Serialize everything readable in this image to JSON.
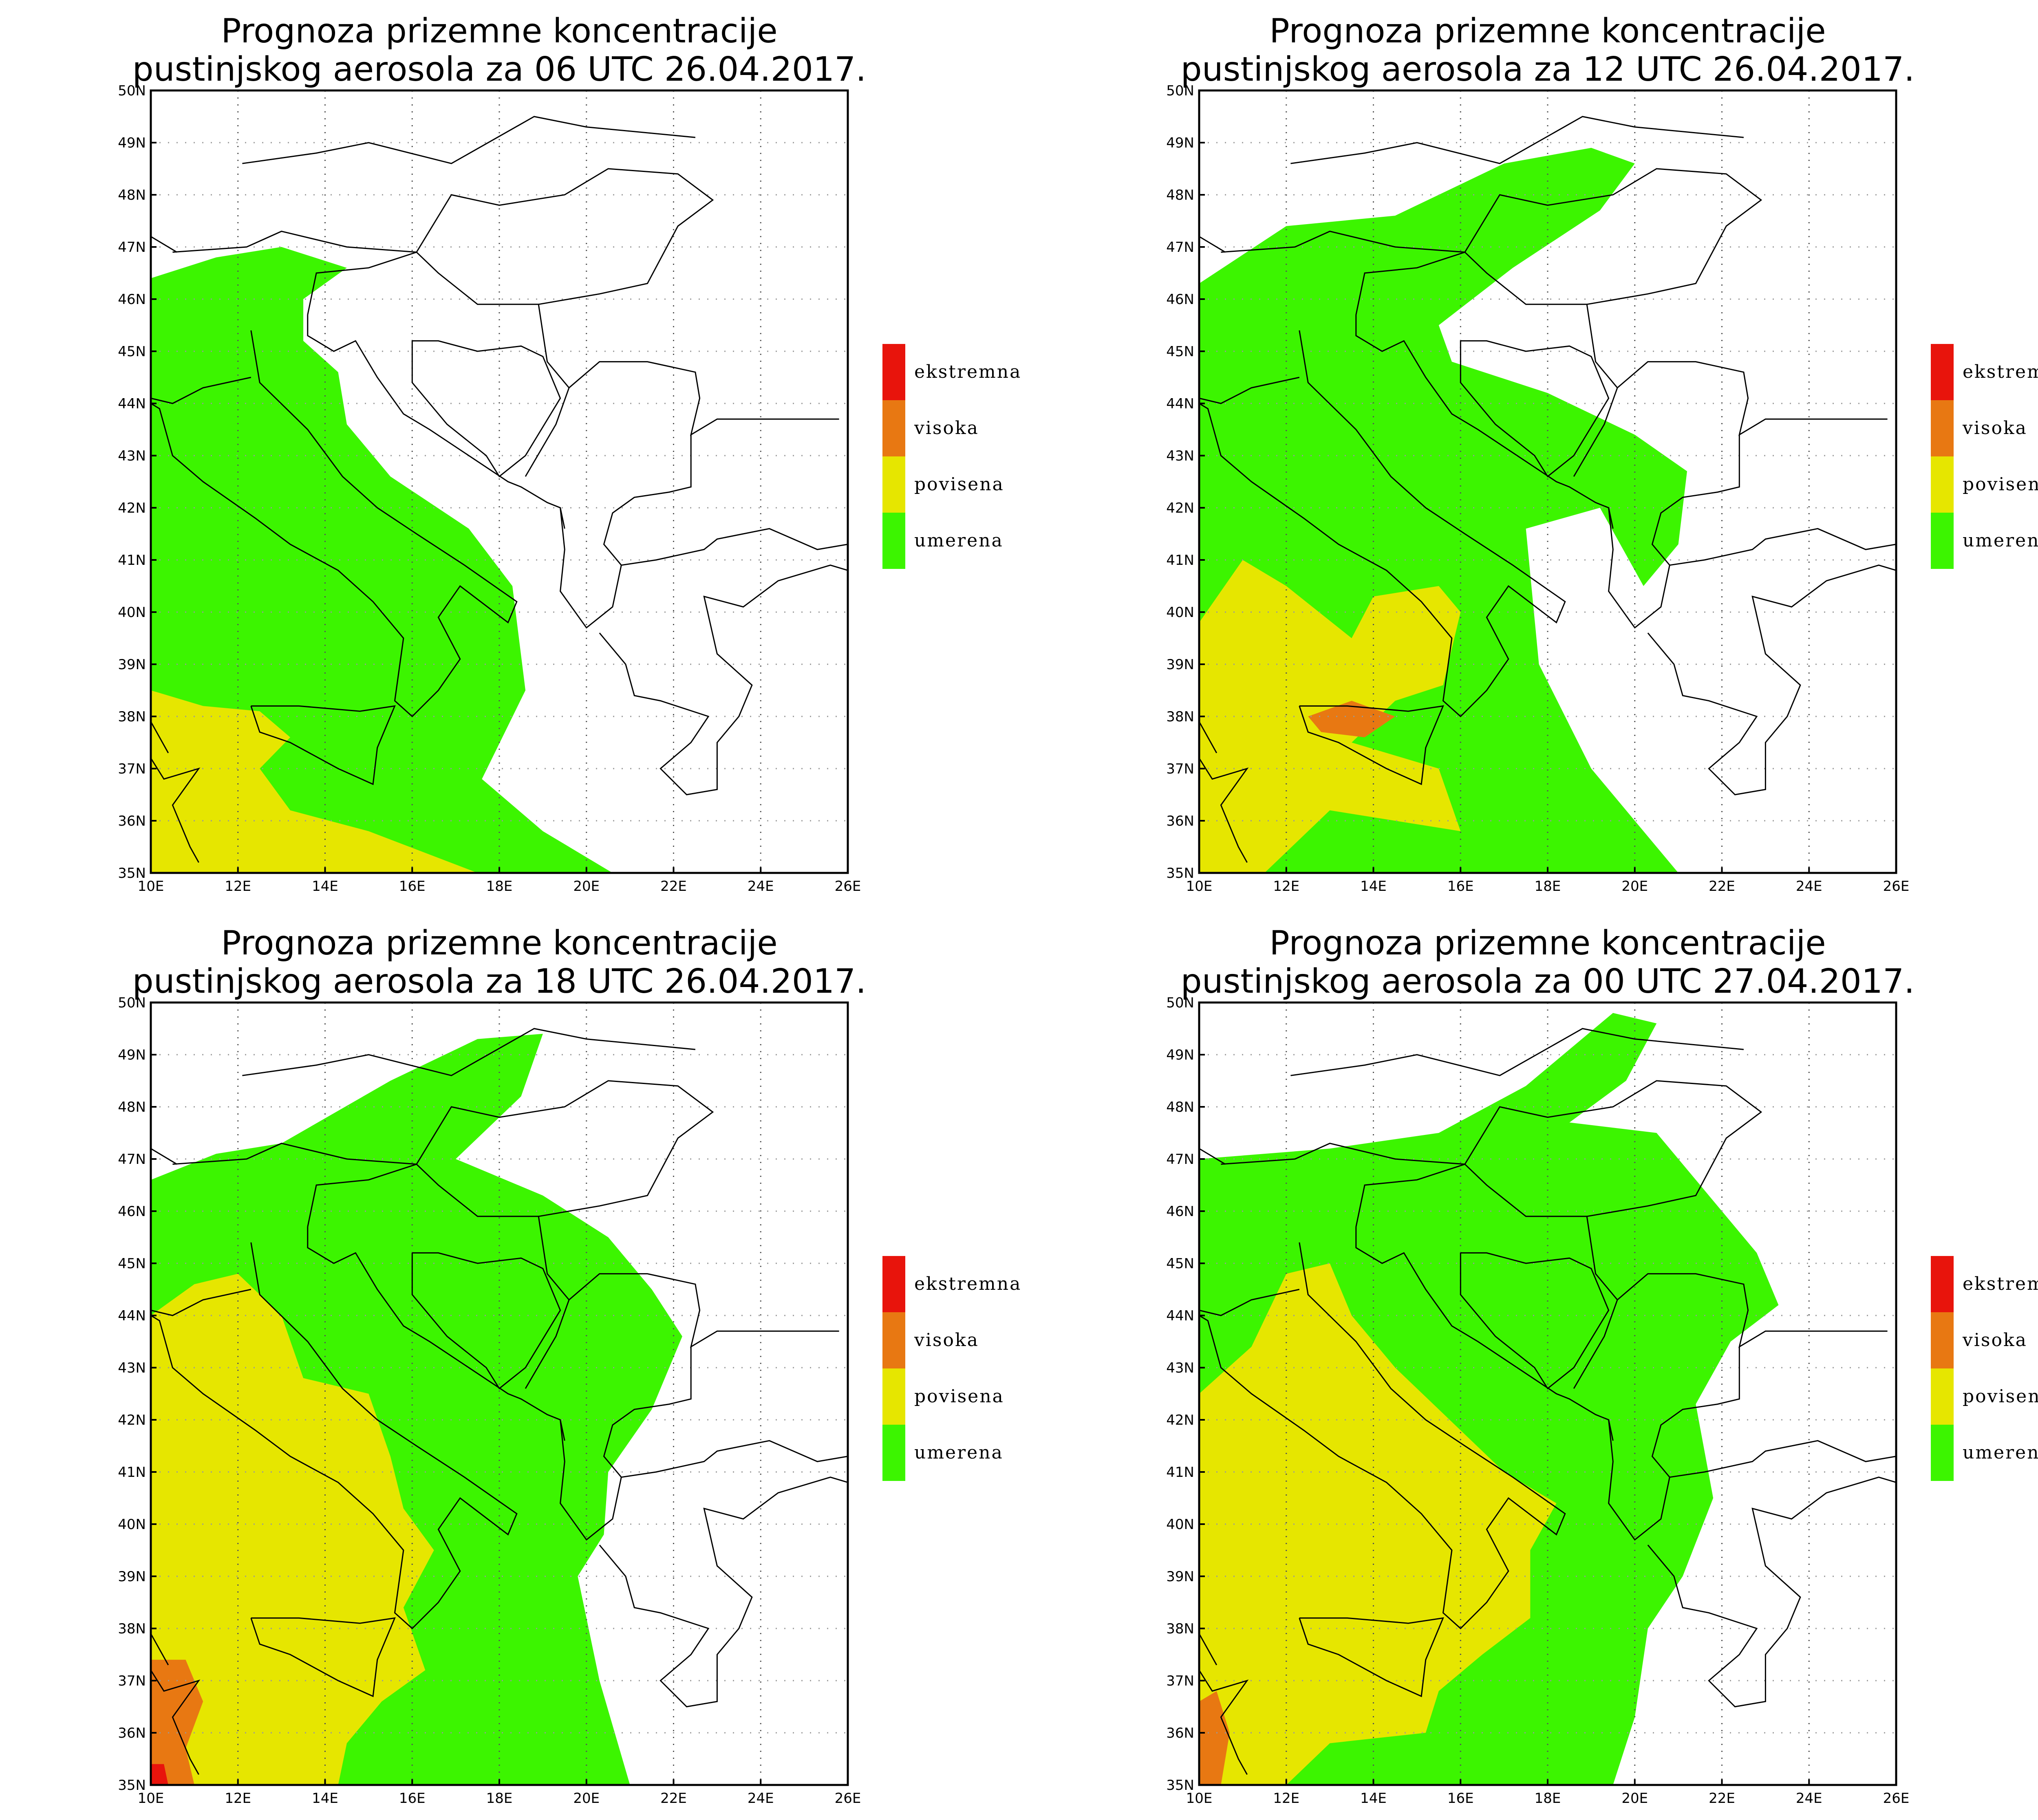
{
  "map": {
    "extent": {
      "lon": [
        10,
        26
      ],
      "lat": [
        35,
        50
      ]
    },
    "lon_ticks": [
      "10E",
      "12E",
      "14E",
      "16E",
      "18E",
      "20E",
      "22E",
      "24E",
      "26E"
    ],
    "lat_ticks": [
      "35N",
      "36N",
      "37N",
      "38N",
      "39N",
      "40N",
      "41N",
      "42N",
      "43N",
      "44N",
      "45N",
      "46N",
      "47N",
      "48N",
      "49N",
      "50N"
    ],
    "gridlines": true
  },
  "legend": [
    {
      "label": "ekstremna",
      "color": "#e8140c"
    },
    {
      "label": "visoka",
      "color": "#e87812"
    },
    {
      "label": "povisena",
      "color": "#e6e600"
    },
    {
      "label": "umerena",
      "color": "#3cf500"
    }
  ],
  "panels": [
    {
      "title_line1": "Prognoza prizemne koncentracije",
      "title_line2": "pustinjskog aerosola za 06 UTC 26.04.2017.",
      "green": [
        [
          10,
          46.4
        ],
        [
          11.5,
          46.8
        ],
        [
          13,
          47
        ],
        [
          14.5,
          46.6
        ],
        [
          13.5,
          46
        ],
        [
          13.5,
          45.2
        ],
        [
          14.3,
          44.6
        ],
        [
          14.5,
          43.6
        ],
        [
          15.5,
          42.6
        ],
        [
          17.3,
          41.6
        ],
        [
          18.3,
          40.5
        ],
        [
          18.6,
          38.5
        ],
        [
          17.6,
          36.8
        ],
        [
          19,
          35.8
        ],
        [
          20.6,
          35
        ],
        [
          10,
          35
        ]
      ],
      "yellow": [
        [
          10,
          38.5
        ],
        [
          11.2,
          38.2
        ],
        [
          12.5,
          38.1
        ],
        [
          13.2,
          37.6
        ],
        [
          12.5,
          37
        ],
        [
          13.2,
          36.2
        ],
        [
          15,
          35.8
        ],
        [
          17.5,
          35
        ],
        [
          10,
          35
        ]
      ],
      "orange": [],
      "red": []
    },
    {
      "title_line1": "Prognoza prizemne koncentracije",
      "title_line2": "pustinjskog aerosola za 12 UTC 26.04.2017.",
      "green": [
        [
          10,
          46.3
        ],
        [
          12,
          47.4
        ],
        [
          14.5,
          47.6
        ],
        [
          17,
          48.6
        ],
        [
          19,
          48.9
        ],
        [
          20,
          48.6
        ],
        [
          19.2,
          47.7
        ],
        [
          17.2,
          46.6
        ],
        [
          15.5,
          45.5
        ],
        [
          15.8,
          44.8
        ],
        [
          18,
          44.2
        ],
        [
          20,
          43.4
        ],
        [
          21.2,
          42.7
        ],
        [
          21,
          41.3
        ],
        [
          20.2,
          40.5
        ],
        [
          19.2,
          42
        ],
        [
          17.5,
          41.6
        ],
        [
          17.8,
          39
        ],
        [
          19,
          37
        ],
        [
          21,
          35
        ],
        [
          10,
          35
        ]
      ],
      "yellow": [
        [
          10,
          39.8
        ],
        [
          11,
          41
        ],
        [
          12,
          40.5
        ],
        [
          13.5,
          39.5
        ],
        [
          14,
          40.3
        ],
        [
          15.5,
          40.5
        ],
        [
          16,
          40
        ],
        [
          15.6,
          38.6
        ],
        [
          14.5,
          38.3
        ],
        [
          13.5,
          37.5
        ],
        [
          15.5,
          37
        ],
        [
          16,
          35.8
        ],
        [
          13,
          36.2
        ],
        [
          11.5,
          35
        ],
        [
          10,
          35
        ]
      ],
      "orange": [
        [
          12.5,
          38
        ],
        [
          13.5,
          38.3
        ],
        [
          14.5,
          38
        ],
        [
          13.8,
          37.6
        ],
        [
          12.8,
          37.7
        ]
      ],
      "red": []
    },
    {
      "title_line1": "Prognoza prizemne koncentracije",
      "title_line2": "pustinjskog aerosola za 18 UTC 26.04.2017.",
      "green": [
        [
          10,
          46.6
        ],
        [
          11.5,
          47.1
        ],
        [
          13,
          47.3
        ],
        [
          15.5,
          48.5
        ],
        [
          17.5,
          49.3
        ],
        [
          19,
          49.4
        ],
        [
          18.5,
          48.2
        ],
        [
          17,
          47
        ],
        [
          19,
          46.3
        ],
        [
          20.5,
          45.5
        ],
        [
          21.5,
          44.5
        ],
        [
          22.2,
          43.6
        ],
        [
          21.5,
          42.2
        ],
        [
          20.5,
          41
        ],
        [
          20.4,
          39.8
        ],
        [
          19.8,
          39
        ],
        [
          20.3,
          37
        ],
        [
          21,
          35
        ],
        [
          10,
          35
        ]
      ],
      "yellow": [
        [
          10,
          44
        ],
        [
          11,
          44.6
        ],
        [
          12,
          44.8
        ],
        [
          13,
          44
        ],
        [
          13.5,
          42.8
        ],
        [
          15,
          42.5
        ],
        [
          15.5,
          41.3
        ],
        [
          15.8,
          40.3
        ],
        [
          16.5,
          39.5
        ],
        [
          15.8,
          38.4
        ],
        [
          16.3,
          37.2
        ],
        [
          15.3,
          36.6
        ],
        [
          14.5,
          35.8
        ],
        [
          14.3,
          35
        ],
        [
          10,
          35
        ]
      ],
      "orange": [
        [
          10,
          37.4
        ],
        [
          10.8,
          37.4
        ],
        [
          11.2,
          36.6
        ],
        [
          10.8,
          35.7
        ],
        [
          11,
          35
        ],
        [
          10,
          35
        ]
      ],
      "red": [
        [
          10,
          35.4
        ],
        [
          10.3,
          35.4
        ],
        [
          10.4,
          35
        ],
        [
          10,
          35
        ]
      ]
    },
    {
      "title_line1": "Prognoza prizemne koncentracije",
      "title_line2": "pustinjskog aerosola za 00 UTC 27.04.2017.",
      "green": [
        [
          10,
          47
        ],
        [
          13,
          47.2
        ],
        [
          15.5,
          47.5
        ],
        [
          17.5,
          48.4
        ],
        [
          19.5,
          49.8
        ],
        [
          20.5,
          49.6
        ],
        [
          19.8,
          48.5
        ],
        [
          18.5,
          47.7
        ],
        [
          20.5,
          47.5
        ],
        [
          21.6,
          46.4
        ],
        [
          22.8,
          45.2
        ],
        [
          23.3,
          44.2
        ],
        [
          22.2,
          43.5
        ],
        [
          21.4,
          42.3
        ],
        [
          21.8,
          40.5
        ],
        [
          21.1,
          39
        ],
        [
          20.3,
          38
        ],
        [
          20,
          36.3
        ],
        [
          19.5,
          35
        ],
        [
          10,
          35
        ]
      ],
      "yellow": [
        [
          10,
          42.5
        ],
        [
          11.2,
          43.4
        ],
        [
          12,
          44.8
        ],
        [
          13,
          45
        ],
        [
          13.5,
          44
        ],
        [
          14.5,
          43
        ],
        [
          16,
          41.8
        ],
        [
          17,
          41
        ],
        [
          18.2,
          40.4
        ],
        [
          17.6,
          39.5
        ],
        [
          17.6,
          38.2
        ],
        [
          16.5,
          37.5
        ],
        [
          15.5,
          36.8
        ],
        [
          15.2,
          36
        ],
        [
          13,
          35.8
        ],
        [
          12,
          35
        ],
        [
          10,
          35
        ]
      ],
      "orange": [
        [
          10,
          36.6
        ],
        [
          10.4,
          36.8
        ],
        [
          10.7,
          36
        ],
        [
          10.5,
          35
        ],
        [
          10,
          35
        ]
      ],
      "red": []
    }
  ]
}
